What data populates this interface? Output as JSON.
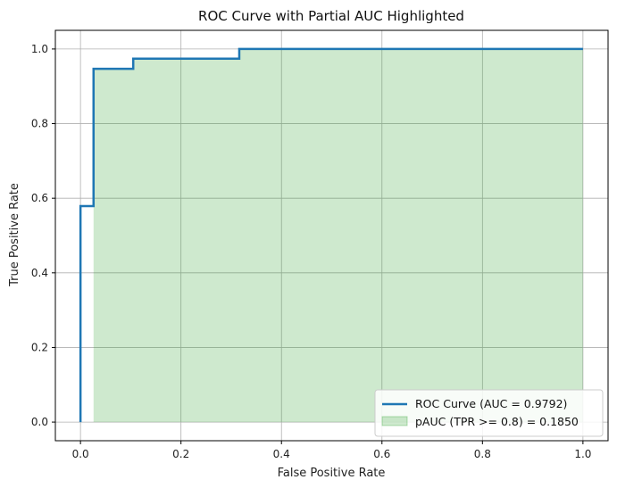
{
  "chart_data": {
    "type": "line",
    "title": "ROC Curve with Partial AUC Highlighted",
    "xlabel": "False Positive Rate",
    "ylabel": "True Positive Rate",
    "xlim": [
      -0.05,
      1.05
    ],
    "ylim": [
      -0.05,
      1.05
    ],
    "xticks": [
      0.0,
      0.2,
      0.4,
      0.6,
      0.8,
      1.0
    ],
    "yticks": [
      0.0,
      0.2,
      0.4,
      0.6,
      0.8,
      1.0
    ],
    "xtick_labels": [
      "0.0",
      "0.2",
      "0.4",
      "0.6",
      "0.8",
      "1.0"
    ],
    "ytick_labels": [
      "0.0",
      "0.2",
      "0.4",
      "0.6",
      "0.8",
      "1.0"
    ],
    "grid": true,
    "legend_position": "bottom-right",
    "series": [
      {
        "name": "ROC Curve (AUC = 0.9792)",
        "kind": "step-line",
        "color": "#1f77b4",
        "points": [
          [
            0.0,
            0.0
          ],
          [
            0.0,
            0.579
          ],
          [
            0.026,
            0.579
          ],
          [
            0.026,
            0.947
          ],
          [
            0.105,
            0.947
          ],
          [
            0.105,
            0.974
          ],
          [
            0.316,
            0.974
          ],
          [
            0.316,
            1.0
          ],
          [
            1.0,
            1.0
          ]
        ]
      },
      {
        "name": "pAUC (TPR >= 0.8) = 0.1850",
        "kind": "filled-area",
        "color": "#2ca02c",
        "opacity": 0.23,
        "points": [
          [
            0.026,
            0.947
          ],
          [
            0.105,
            0.947
          ],
          [
            0.105,
            0.974
          ],
          [
            0.316,
            0.974
          ],
          [
            0.316,
            1.0
          ],
          [
            1.0,
            1.0
          ]
        ],
        "baseline": 0.0
      }
    ]
  }
}
